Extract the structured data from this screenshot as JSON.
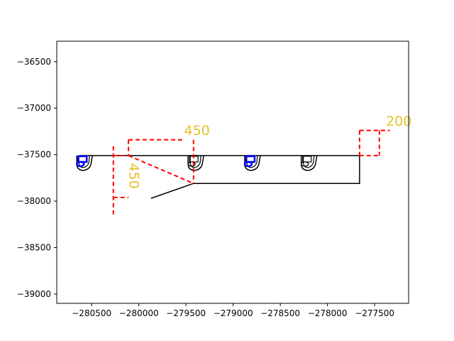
{
  "chart_data": {
    "type": "cad-drawing",
    "title": "",
    "xlabel": "",
    "ylabel": "",
    "xlim": [
      -280870,
      -277140
    ],
    "ylim": [
      -39100,
      -36280
    ],
    "x_ticks": [
      -280500,
      -280000,
      -279500,
      -279000,
      -278500,
      -278000,
      -277500
    ],
    "x_tick_labels": [
      "−280500",
      "−280000",
      "−279500",
      "−279000",
      "−278500",
      "−278000",
      "−277500"
    ],
    "y_ticks": [
      -36500,
      -37000,
      -37500,
      -38000,
      -38500,
      -39000
    ],
    "y_tick_labels": [
      "−36500",
      "−37000",
      "−37500",
      "−38000",
      "−38500",
      "−39000"
    ],
    "colors": {
      "outline": "#000000",
      "dimension": "#ff0000",
      "label": "#e6c229",
      "marker": "#0000ff"
    },
    "outline_paths": [
      [
        [
          -280630,
          -37510
        ],
        [
          -277660,
          -37510
        ],
        [
          -277660,
          -37810
        ],
        [
          -279420,
          -37810
        ],
        [
          -279870,
          -37970
        ]
      ]
    ],
    "fixtures": [
      {
        "x": -280590,
        "y": -37510,
        "highlight": true
      },
      {
        "x": -279410,
        "y": -37510,
        "highlight": false
      },
      {
        "x": -278810,
        "y": -37510,
        "highlight": true
      },
      {
        "x": -278210,
        "y": -37510,
        "highlight": false
      }
    ],
    "dimension_lines": [
      [
        [
          -280110,
          -37340
        ],
        [
          -279540,
          -37340
        ]
      ],
      [
        [
          -280110,
          -37340
        ],
        [
          -280110,
          -37510
        ]
      ],
      [
        [
          -279420,
          -37340
        ],
        [
          -279420,
          -37810
        ]
      ],
      [
        [
          -280110,
          -37510
        ],
        [
          -279420,
          -37810
        ]
      ],
      [
        [
          -280270,
          -37510
        ],
        [
          -280110,
          -37510
        ]
      ],
      [
        [
          -280270,
          -37410
        ],
        [
          -280270,
          -38160
        ]
      ],
      [
        [
          -280270,
          -37960
        ],
        [
          -280110,
          -37960
        ]
      ],
      [
        [
          -277660,
          -37240
        ],
        [
          -277340,
          -37240
        ]
      ],
      [
        [
          -277660,
          -37240
        ],
        [
          -277660,
          -37510
        ]
      ],
      [
        [
          -277660,
          -37510
        ],
        [
          -277450,
          -37510
        ]
      ],
      [
        [
          -277450,
          -37240
        ],
        [
          -277450,
          -37510
        ]
      ]
    ],
    "annotations": [
      {
        "text": "450",
        "x": -279520,
        "y": -37290,
        "rotation": 0
      },
      {
        "text": "450",
        "x": -280100,
        "y": -37730,
        "rotation": 90
      },
      {
        "text": "200",
        "x": -277380,
        "y": -37190,
        "rotation": 0
      }
    ]
  }
}
